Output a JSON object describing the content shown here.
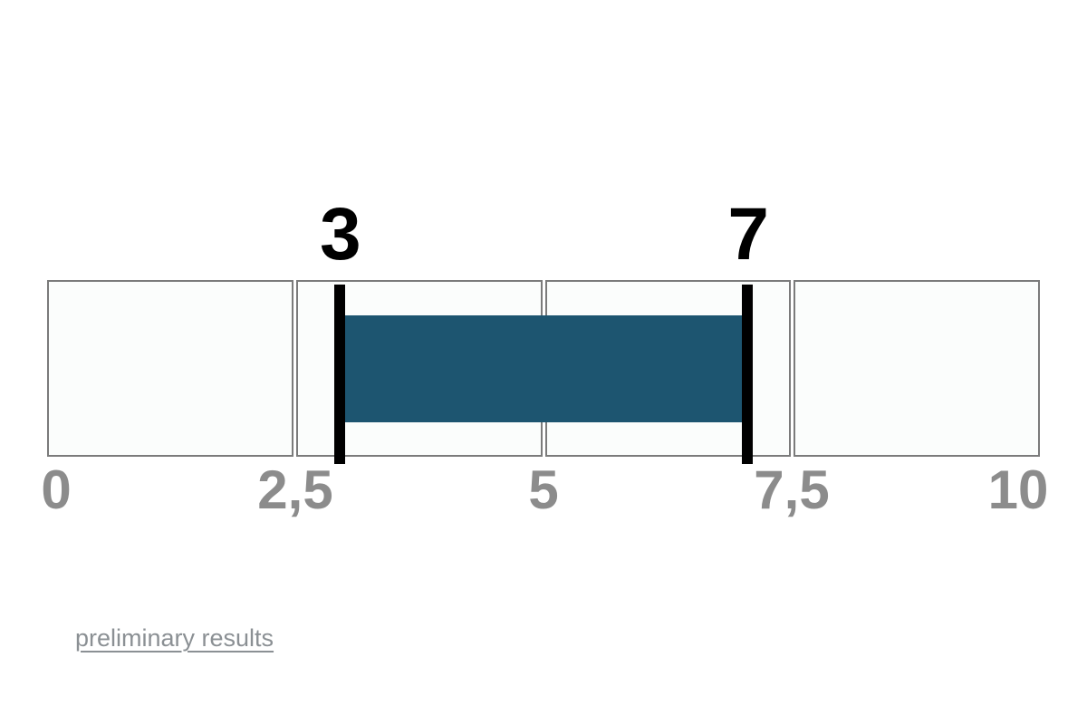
{
  "chart_data": {
    "type": "bar",
    "subtype": "range-interval",
    "orientation": "horizontal",
    "scale_min": 0,
    "scale_max": 10,
    "range_low": 3,
    "range_high": 7,
    "lower_label": "3",
    "upper_label": "7",
    "ticks": [
      {
        "label": "0",
        "value": 0
      },
      {
        "label": "2,5",
        "value": 2.5
      },
      {
        "label": "5",
        "value": 5
      },
      {
        "label": "7,5",
        "value": 7.5
      },
      {
        "label": "10",
        "value": 10
      }
    ],
    "segments": 4,
    "grid": false,
    "legend": false,
    "colors": {
      "bar": "#1d5570",
      "marker_line": "#000000",
      "range_label": "#000000",
      "tick_label": "#8c8c8c",
      "segment_fill": "#fbfdfc",
      "segment_border": "#7b7b7b"
    }
  },
  "footer": {
    "link_label": "preliminary results"
  }
}
